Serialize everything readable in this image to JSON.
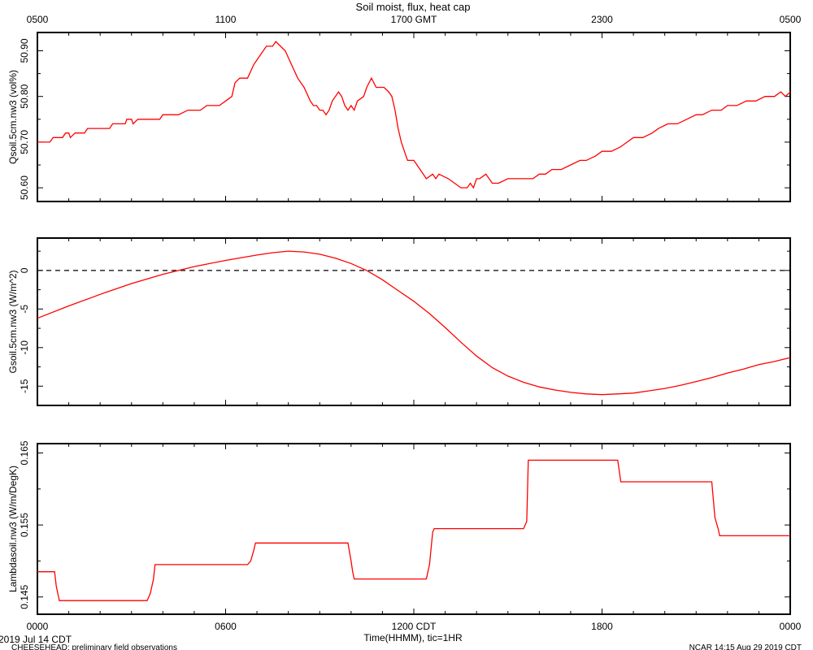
{
  "title": "Soil moist, flux, heat cap",
  "top_axis": {
    "ticks": [
      "0500",
      "1100",
      "1700 GMT",
      "2300",
      "0500"
    ]
  },
  "bottom_axis": {
    "ticks": [
      "0000",
      "0600",
      "1200 CDT",
      "1800",
      "0000"
    ],
    "label": "Time(HHMM), tic=1HR"
  },
  "footer": {
    "date": "2019 Jul 14 CDT",
    "project": "CHEESEHEAD: preliminary field observations",
    "generated": "NCAR 14:15 Aug 29 2019 CDT"
  },
  "colors": {
    "series": "#ff0000",
    "axes": "#000000",
    "background": "#ffffff"
  },
  "chart_data": [
    {
      "type": "line",
      "ylabel": "Qsoil.5cm.nw3 (vol%)",
      "xlim": [
        0,
        24
      ],
      "ylim": [
        50.57,
        50.94
      ],
      "yticks": [
        50.6,
        50.7,
        50.8,
        50.9
      ],
      "ytick_labels": [
        "50.60",
        "50.70",
        "50.80",
        "50.90"
      ],
      "grid": false,
      "series": [
        {
          "values": [
            [
              0,
              50.7
            ],
            [
              0.4,
              50.7
            ],
            [
              0.5,
              50.71
            ],
            [
              0.8,
              50.71
            ],
            [
              0.9,
              50.72
            ],
            [
              1.0,
              50.72
            ],
            [
              1.05,
              50.71
            ],
            [
              1.2,
              50.72
            ],
            [
              1.5,
              50.72
            ],
            [
              1.6,
              50.73
            ],
            [
              2.0,
              50.73
            ],
            [
              2.3,
              50.73
            ],
            [
              2.4,
              50.74
            ],
            [
              2.8,
              50.74
            ],
            [
              2.85,
              50.75
            ],
            [
              3.0,
              50.75
            ],
            [
              3.05,
              50.74
            ],
            [
              3.2,
              50.75
            ],
            [
              3.6,
              50.75
            ],
            [
              3.9,
              50.75
            ],
            [
              4.0,
              50.76
            ],
            [
              4.5,
              50.76
            ],
            [
              4.8,
              50.77
            ],
            [
              5.2,
              50.77
            ],
            [
              5.4,
              50.78
            ],
            [
              5.8,
              50.78
            ],
            [
              6.0,
              50.79
            ],
            [
              6.2,
              50.8
            ],
            [
              6.3,
              50.83
            ],
            [
              6.45,
              50.84
            ],
            [
              6.7,
              50.84
            ],
            [
              6.9,
              50.87
            ],
            [
              7.1,
              50.89
            ],
            [
              7.3,
              50.91
            ],
            [
              7.5,
              50.91
            ],
            [
              7.6,
              50.92
            ],
            [
              7.75,
              50.91
            ],
            [
              7.9,
              50.9
            ],
            [
              8.1,
              50.87
            ],
            [
              8.3,
              50.84
            ],
            [
              8.5,
              50.82
            ],
            [
              8.7,
              50.79
            ],
            [
              8.8,
              50.78
            ],
            [
              8.9,
              50.78
            ],
            [
              9.0,
              50.77
            ],
            [
              9.1,
              50.77
            ],
            [
              9.2,
              50.76
            ],
            [
              9.3,
              50.77
            ],
            [
              9.4,
              50.79
            ],
            [
              9.6,
              50.81
            ],
            [
              9.7,
              50.8
            ],
            [
              9.8,
              50.78
            ],
            [
              9.9,
              50.77
            ],
            [
              10.0,
              50.78
            ],
            [
              10.1,
              50.77
            ],
            [
              10.2,
              50.79
            ],
            [
              10.4,
              50.8
            ],
            [
              10.5,
              50.82
            ],
            [
              10.65,
              50.84
            ],
            [
              10.8,
              50.82
            ],
            [
              10.9,
              50.82
            ],
            [
              11.05,
              50.82
            ],
            [
              11.2,
              50.81
            ],
            [
              11.3,
              50.8
            ],
            [
              11.4,
              50.77
            ],
            [
              11.5,
              50.73
            ],
            [
              11.6,
              50.7
            ],
            [
              11.7,
              50.68
            ],
            [
              11.8,
              50.66
            ],
            [
              12.0,
              50.66
            ],
            [
              12.1,
              50.65
            ],
            [
              12.2,
              50.64
            ],
            [
              12.3,
              50.63
            ],
            [
              12.4,
              50.62
            ],
            [
              12.6,
              50.63
            ],
            [
              12.7,
              50.62
            ],
            [
              12.8,
              50.63
            ],
            [
              13.1,
              50.62
            ],
            [
              13.3,
              50.61
            ],
            [
              13.5,
              50.6
            ],
            [
              13.7,
              50.6
            ],
            [
              13.8,
              50.61
            ],
            [
              13.9,
              50.6
            ],
            [
              14.0,
              50.62
            ],
            [
              14.1,
              50.62
            ],
            [
              14.3,
              50.63
            ],
            [
              14.5,
              50.61
            ],
            [
              14.7,
              50.61
            ],
            [
              15.0,
              50.62
            ],
            [
              15.3,
              50.62
            ],
            [
              15.5,
              50.62
            ],
            [
              15.8,
              50.62
            ],
            [
              16.0,
              50.63
            ],
            [
              16.2,
              50.63
            ],
            [
              16.4,
              50.64
            ],
            [
              16.7,
              50.64
            ],
            [
              17.0,
              50.65
            ],
            [
              17.3,
              50.66
            ],
            [
              17.5,
              50.66
            ],
            [
              17.8,
              50.67
            ],
            [
              18.0,
              50.68
            ],
            [
              18.3,
              50.68
            ],
            [
              18.6,
              50.69
            ],
            [
              18.8,
              50.7
            ],
            [
              19.0,
              50.71
            ],
            [
              19.3,
              50.71
            ],
            [
              19.6,
              50.72
            ],
            [
              19.8,
              50.73
            ],
            [
              20.1,
              50.74
            ],
            [
              20.4,
              50.74
            ],
            [
              20.7,
              50.75
            ],
            [
              21.0,
              50.76
            ],
            [
              21.2,
              50.76
            ],
            [
              21.5,
              50.77
            ],
            [
              21.8,
              50.77
            ],
            [
              22.0,
              50.78
            ],
            [
              22.3,
              50.78
            ],
            [
              22.6,
              50.79
            ],
            [
              22.9,
              50.79
            ],
            [
              23.2,
              50.8
            ],
            [
              23.5,
              50.8
            ],
            [
              23.7,
              50.81
            ],
            [
              23.85,
              50.8
            ],
            [
              24.0,
              50.81
            ]
          ]
        }
      ]
    },
    {
      "type": "line",
      "ylabel": "Gsoil.5cm.nw3 (W/m^2)",
      "xlim": [
        0,
        24
      ],
      "ylim": [
        -17.5,
        4.2
      ],
      "yticks": [
        -15,
        -10,
        -5,
        0
      ],
      "ytick_labels": [
        "-15",
        "-10",
        "-5",
        "0"
      ],
      "grid": false,
      "reference_line": 0,
      "series": [
        {
          "values": [
            [
              0,
              -6.2
            ],
            [
              1,
              -4.6
            ],
            [
              2,
              -3.1
            ],
            [
              3,
              -1.7
            ],
            [
              4,
              -0.5
            ],
            [
              5,
              0.5
            ],
            [
              6,
              1.3
            ],
            [
              7,
              2.0
            ],
            [
              7.5,
              2.3
            ],
            [
              8,
              2.5
            ],
            [
              8.5,
              2.4
            ],
            [
              9,
              2.1
            ],
            [
              9.5,
              1.6
            ],
            [
              10,
              0.9
            ],
            [
              10.5,
              0.0
            ],
            [
              11,
              -1.2
            ],
            [
              11.5,
              -2.6
            ],
            [
              12,
              -4.0
            ],
            [
              12.5,
              -5.6
            ],
            [
              13,
              -7.4
            ],
            [
              13.5,
              -9.3
            ],
            [
              14,
              -11.1
            ],
            [
              14.5,
              -12.6
            ],
            [
              15,
              -13.7
            ],
            [
              15.5,
              -14.5
            ],
            [
              16,
              -15.1
            ],
            [
              16.5,
              -15.5
            ],
            [
              17,
              -15.8
            ],
            [
              17.5,
              -16.0
            ],
            [
              18,
              -16.1
            ],
            [
              18.5,
              -16.0
            ],
            [
              19,
              -15.9
            ],
            [
              19.5,
              -15.6
            ],
            [
              20,
              -15.3
            ],
            [
              20.5,
              -14.9
            ],
            [
              21,
              -14.4
            ],
            [
              21.5,
              -13.9
            ],
            [
              22,
              -13.3
            ],
            [
              22.5,
              -12.8
            ],
            [
              23,
              -12.2
            ],
            [
              23.5,
              -11.8
            ],
            [
              24,
              -11.3
            ]
          ]
        }
      ]
    },
    {
      "type": "line",
      "ylabel": "Lambdasoil.nw3 (W/m/DegK)",
      "xlim": [
        0,
        24
      ],
      "ylim": [
        0.1426,
        0.1663
      ],
      "yticks": [
        0.145,
        0.155,
        0.165
      ],
      "ytick_labels": [
        "0.145",
        "0.155",
        "0.165"
      ],
      "grid": false,
      "series": [
        {
          "values": [
            [
              0,
              0.1485
            ],
            [
              0.55,
              0.1485
            ],
            [
              0.6,
              0.1465
            ],
            [
              0.7,
              0.1445
            ],
            [
              3.5,
              0.1445
            ],
            [
              3.6,
              0.1455
            ],
            [
              3.7,
              0.1475
            ],
            [
              3.75,
              0.1495
            ],
            [
              6.7,
              0.1495
            ],
            [
              6.8,
              0.15
            ],
            [
              6.9,
              0.1515
            ],
            [
              6.95,
              0.1525
            ],
            [
              9.9,
              0.1525
            ],
            [
              10.0,
              0.15
            ],
            [
              10.05,
              0.1485
            ],
            [
              10.1,
              0.1475
            ],
            [
              12.4,
              0.1475
            ],
            [
              12.5,
              0.1495
            ],
            [
              12.6,
              0.154
            ],
            [
              12.65,
              0.1545
            ],
            [
              15.5,
              0.1545
            ],
            [
              15.6,
              0.1555
            ],
            [
              15.65,
              0.164
            ],
            [
              18.5,
              0.164
            ],
            [
              18.55,
              0.1625
            ],
            [
              18.6,
              0.161
            ],
            [
              21.5,
              0.161
            ],
            [
              21.6,
              0.156
            ],
            [
              21.7,
              0.1545
            ],
            [
              21.75,
              0.1535
            ],
            [
              24,
              0.1535
            ]
          ]
        }
      ]
    }
  ]
}
